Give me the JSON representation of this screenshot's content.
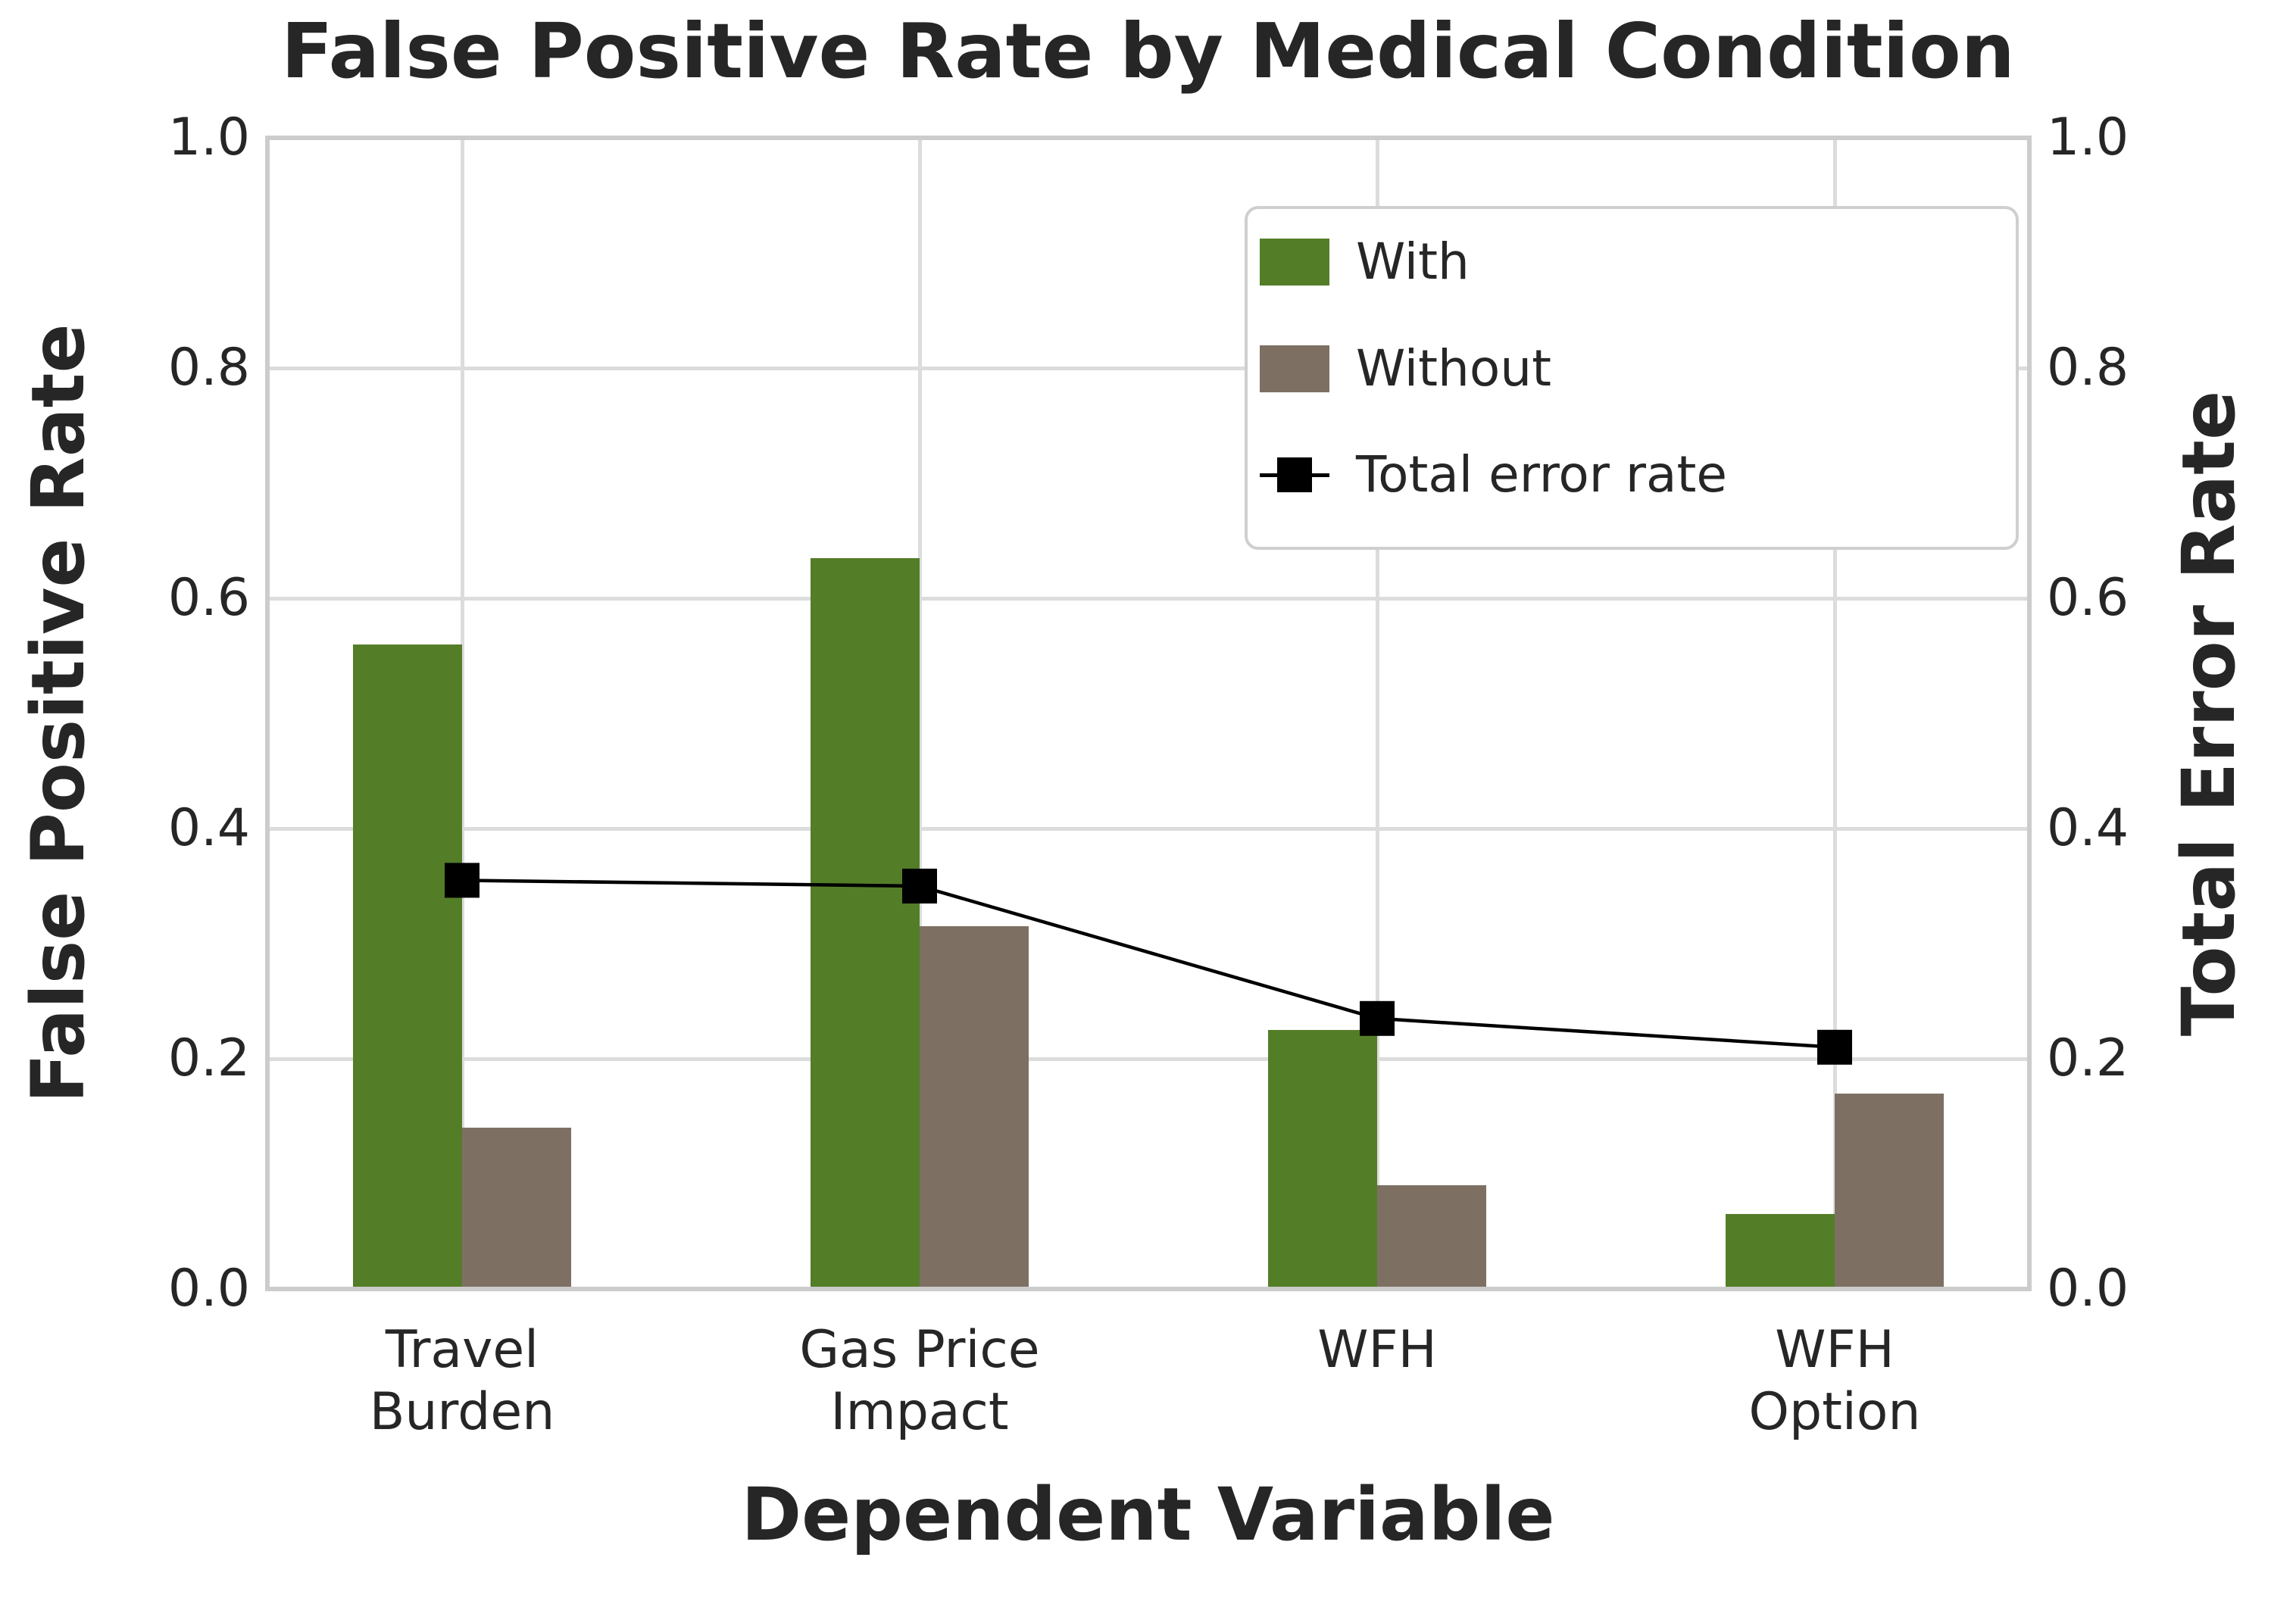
{
  "chart_data": {
    "type": "bar",
    "title": "False Positive Rate by Medical Condition",
    "xlabel": "Dependent Variable",
    "ylabel_left": "False Positive Rate",
    "ylabel_right": "Total Error Rate",
    "categories": [
      [
        "Travel",
        "Burden"
      ],
      [
        "Gas Price",
        "Impact"
      ],
      [
        "WFH"
      ],
      [
        "WFH",
        "Option"
      ]
    ],
    "ylim": [
      0.0,
      1.0
    ],
    "yticks": {
      "values": [
        1.0,
        0.8,
        0.6,
        0.4,
        0.2,
        0.0
      ],
      "labels": [
        "1.0",
        "0.8",
        "0.6",
        "0.4",
        "0.2",
        "0.0"
      ]
    },
    "grid": true,
    "legend_position": "upper right",
    "series": [
      {
        "name": "With",
        "type": "bar",
        "color": "#547d28",
        "values": [
          0.56,
          0.635,
          0.225,
          0.065
        ]
      },
      {
        "name": "Without",
        "type": "bar",
        "color": "#7d7063",
        "values": [
          0.14,
          0.315,
          0.09,
          0.17
        ]
      },
      {
        "name": "Total error rate",
        "type": "line",
        "color": "#000000",
        "marker": "square",
        "values": [
          0.355,
          0.35,
          0.235,
          0.21
        ]
      }
    ]
  }
}
